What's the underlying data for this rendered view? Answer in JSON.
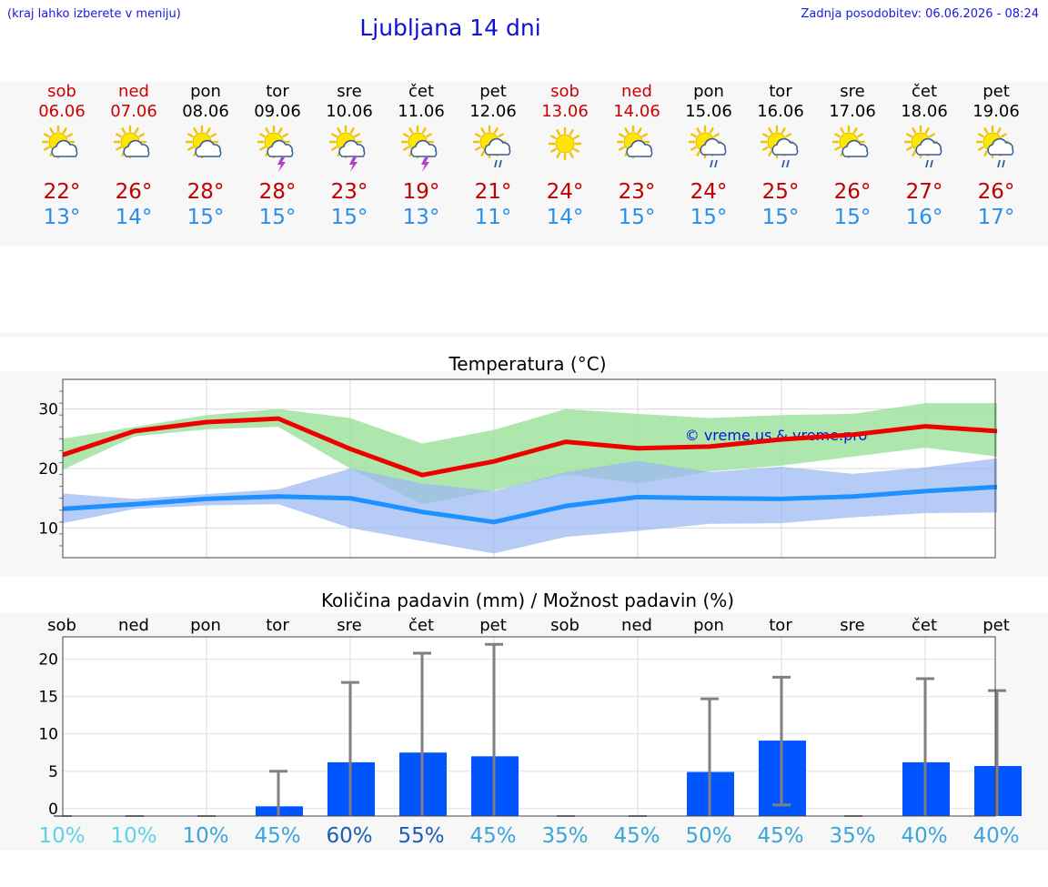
{
  "header": {
    "hint": "(kraj lahko izberete v meniju)",
    "title": "Ljubljana 14 dni",
    "updated": "Zadnja posodobitev: 06.06.2026 - 08:24"
  },
  "days": [
    {
      "name": "sob",
      "date": "06.06",
      "weekend": true,
      "icon": "sun-cloud-icon",
      "tmax": "22°",
      "tmin": "13°"
    },
    {
      "name": "ned",
      "date": "07.06",
      "weekend": true,
      "icon": "sun-cloud-icon",
      "tmax": "26°",
      "tmin": "14°"
    },
    {
      "name": "pon",
      "date": "08.06",
      "weekend": false,
      "icon": "sun-cloud-icon",
      "tmax": "28°",
      "tmin": "15°"
    },
    {
      "name": "tor",
      "date": "09.06",
      "weekend": false,
      "icon": "sun-thunder-icon",
      "tmax": "28°",
      "tmin": "15°"
    },
    {
      "name": "sre",
      "date": "10.06",
      "weekend": false,
      "icon": "sun-thunder-icon",
      "tmax": "23°",
      "tmin": "15°"
    },
    {
      "name": "čet",
      "date": "11.06",
      "weekend": false,
      "icon": "sun-thunder-icon",
      "tmax": "19°",
      "tmin": "13°"
    },
    {
      "name": "pet",
      "date": "12.06",
      "weekend": false,
      "icon": "sun-rain-icon",
      "tmax": "21°",
      "tmin": "11°"
    },
    {
      "name": "sob",
      "date": "13.06",
      "weekend": true,
      "icon": "sun-icon",
      "tmax": "24°",
      "tmin": "14°"
    },
    {
      "name": "ned",
      "date": "14.06",
      "weekend": true,
      "icon": "sun-cloud-icon",
      "tmax": "23°",
      "tmin": "15°"
    },
    {
      "name": "pon",
      "date": "15.06",
      "weekend": false,
      "icon": "sun-rain-icon",
      "tmax": "24°",
      "tmin": "15°"
    },
    {
      "name": "tor",
      "date": "16.06",
      "weekend": false,
      "icon": "sun-rain-icon",
      "tmax": "25°",
      "tmin": "15°"
    },
    {
      "name": "sre",
      "date": "17.06",
      "weekend": false,
      "icon": "sun-cloud-icon",
      "tmax": "26°",
      "tmin": "15°"
    },
    {
      "name": "čet",
      "date": "18.06",
      "weekend": false,
      "icon": "sun-rain-icon",
      "tmax": "27°",
      "tmin": "16°"
    },
    {
      "name": "pet",
      "date": "19.06",
      "weekend": false,
      "icon": "sun-rain-icon",
      "tmax": "26°",
      "tmin": "17°"
    }
  ],
  "colors": {
    "weekend": "#cc0000",
    "max_line": "#ee0000",
    "min_line": "#1e90ff",
    "max_band": "#9fe3a0",
    "min_band": "#9db9f2",
    "bar": "#0055ff",
    "error_bar": "#808080"
  },
  "chart_data": [
    {
      "type": "line",
      "title": "Temperatura (°C)",
      "watermark": "© vreme.us & vreme.pro",
      "ylim": [
        5,
        35
      ],
      "yticks": [
        10,
        20,
        30
      ],
      "x": [
        "06.06",
        "07.06",
        "08.06",
        "09.06",
        "10.06",
        "11.06",
        "12.06",
        "13.06",
        "14.06",
        "15.06",
        "16.06",
        "17.06",
        "18.06",
        "19.06"
      ],
      "series": [
        {
          "role": "max",
          "values": [
            22.3,
            26.3,
            27.8,
            28.4,
            23.3,
            18.9,
            21.2,
            24.5,
            23.4,
            23.7,
            24.9,
            25.7,
            27.1,
            26.3
          ]
        },
        {
          "role": "min",
          "values": [
            13.2,
            14.0,
            14.9,
            15.3,
            15.0,
            12.7,
            11.0,
            13.7,
            15.2,
            15.0,
            14.9,
            15.3,
            16.2,
            16.9
          ]
        }
      ],
      "bands": [
        {
          "role": "max-range",
          "upper": [
            25,
            27,
            29,
            30,
            28.5,
            24.2,
            26.5,
            30,
            29.2,
            28.5,
            29,
            29.2,
            31,
            31
          ],
          "lower": [
            19.8,
            25.4,
            26.6,
            27,
            20,
            14,
            16.3,
            19,
            17.5,
            19.5,
            20.5,
            22,
            23.5,
            22
          ]
        },
        {
          "role": "min-range",
          "upper": [
            15.8,
            14.9,
            15.7,
            16.5,
            20,
            17.5,
            16.2,
            19.4,
            21.3,
            19.4,
            20.3,
            19.1,
            20.2,
            21.7
          ],
          "lower": [
            10.8,
            13.2,
            13.8,
            14,
            10,
            7.8,
            5.7,
            8.5,
            9.5,
            10.7,
            10.8,
            11.8,
            12.5,
            12.6
          ]
        }
      ]
    },
    {
      "type": "bar",
      "title": "Količina padavin (mm) / Možnost padavin (%)",
      "ylim": [
        -1,
        23
      ],
      "yticks": [
        0,
        5,
        10,
        15,
        20
      ],
      "categories": [
        "sob",
        "ned",
        "pon",
        "tor",
        "sre",
        "čet",
        "pet",
        "sob",
        "ned",
        "pon",
        "tor",
        "sre",
        "čet",
        "pet"
      ],
      "values": [
        0,
        0,
        0,
        0.3,
        6.2,
        7.5,
        7.0,
        0,
        0,
        4.9,
        9.1,
        0,
        6.2,
        5.7
      ],
      "error_high": [
        0,
        0,
        0,
        5.0,
        16.9,
        20.8,
        22.0,
        0,
        0,
        14.7,
        17.6,
        0,
        17.4,
        15.8
      ],
      "error_low": [
        0,
        0,
        0,
        0,
        0,
        0,
        0,
        0,
        0,
        0,
        0.5,
        0,
        0,
        0
      ],
      "probability": [
        "10%",
        "10%",
        "10%",
        "45%",
        "60%",
        "55%",
        "45%",
        "35%",
        "45%",
        "50%",
        "45%",
        "35%",
        "40%",
        "40%"
      ],
      "probability_colors": [
        "#5fd3e6",
        "#5fd3e6",
        "#3aa6d8",
        "#3aa6d8",
        "#1a5fb4",
        "#1a5fb4",
        "#3aa6d8",
        "#3aa6d8",
        "#3aa6d8",
        "#3aa6d8",
        "#3aa6d8",
        "#3aa6d8",
        "#3aa6d8",
        "#3aa6d8"
      ]
    }
  ]
}
